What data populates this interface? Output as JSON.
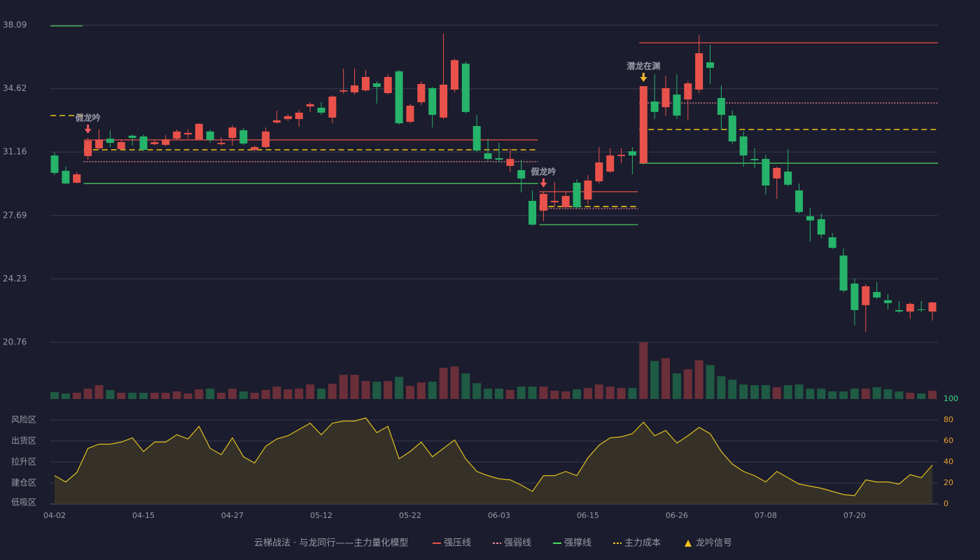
{
  "chart_data": {
    "type": "candlestick",
    "categories": [
      "04-02",
      null,
      null,
      null,
      null,
      null,
      null,
      null,
      "04-15",
      null,
      null,
      null,
      null,
      null,
      null,
      null,
      "04-27",
      null,
      null,
      null,
      null,
      null,
      null,
      null,
      "05-12",
      null,
      null,
      null,
      null,
      null,
      null,
      null,
      "05-22",
      null,
      null,
      null,
      null,
      null,
      null,
      null,
      "06-03",
      null,
      null,
      null,
      null,
      null,
      null,
      null,
      "06-15",
      null,
      null,
      null,
      null,
      null,
      null,
      null,
      "06-26",
      null,
      null,
      null,
      null,
      null,
      null,
      null,
      "07-08",
      null,
      null,
      null,
      null,
      null,
      null,
      null,
      "07-20",
      null,
      null,
      null,
      null,
      null,
      null,
      null
    ],
    "open": [
      30.97,
      30.13,
      29.48,
      30.94,
      31.36,
      31.89,
      31.32,
      32.05,
      32.01,
      31.59,
      31.55,
      31.89,
      32.12,
      31.85,
      32.28,
      31.59,
      31.93,
      32.35,
      31.28,
      31.43,
      32.77,
      32.96,
      32.96,
      33.65,
      33.58,
      33.04,
      34.46,
      34.42,
      34.53,
      34.91,
      34.38,
      35.57,
      32.81,
      33.88,
      34.65,
      33.04,
      34.57,
      35.99,
      32.58,
      31.09,
      30.82,
      30.4,
      30.17,
      28.49,
      27.95,
      28.41,
      28.14,
      29.48,
      28.56,
      29.56,
      30.09,
      30.94,
      31.2,
      30.55,
      33.92,
      33.61,
      34.3,
      34.03,
      34.57,
      36.06,
      34.11,
      33.15,
      32.01,
      30.78,
      30.78,
      29.71,
      30.09,
      29.06,
      27.65,
      27.49,
      26.5,
      25.5,
      23.97,
      22.79,
      23.51,
      23.06,
      22.52,
      22.44,
      22.56,
      22.44
    ],
    "high": [
      31.13,
      30.36,
      30.05,
      31.93,
      32.39,
      32.35,
      31.85,
      32.12,
      32.12,
      31.82,
      32.08,
      32.39,
      32.39,
      32.73,
      32.39,
      31.97,
      32.62,
      32.47,
      31.51,
      32.5,
      33.42,
      33.23,
      33.46,
      33.88,
      33.88,
      34.26,
      35.72,
      35.72,
      35.64,
      35.03,
      35.41,
      35.64,
      33.81,
      35.03,
      34.72,
      37.63,
      36.25,
      36.1,
      33.19,
      31.89,
      31.66,
      31.36,
      30.74,
      29.06,
      28.99,
      29.52,
      28.96,
      29.67,
      29.9,
      31.43,
      31.36,
      31.36,
      31.43,
      34.76,
      35.41,
      35.34,
      35.41,
      35.03,
      37.55,
      37.02,
      34.8,
      33.42,
      32.28,
      31.36,
      31.01,
      30.36,
      31.32,
      29.44,
      28.11,
      27.8,
      26.73,
      25.89,
      24.24,
      23.94,
      24.05,
      23.4,
      23.02,
      22.94,
      23.02,
      22.98
    ],
    "low": [
      29.9,
      29.4,
      29.44,
      30.74,
      31.28,
      31.43,
      31.24,
      31.51,
      31.2,
      31.51,
      31.47,
      31.82,
      31.89,
      31.82,
      31.66,
      31.51,
      31.51,
      31.55,
      31.2,
      31.36,
      32.7,
      32.85,
      32.54,
      33.35,
      33.19,
      32.73,
      34.34,
      34.3,
      34.46,
      33.81,
      34.3,
      32.66,
      32.73,
      33.73,
      32.5,
      32.96,
      34.42,
      33.27,
      31.17,
      30.67,
      30.59,
      30.05,
      28.95,
      27.11,
      27.38,
      28.14,
      28.07,
      28.07,
      28.3,
      29.44,
      30.02,
      30.55,
      29.94,
      30.48,
      32.96,
      33.12,
      32.96,
      32.89,
      34.38,
      34.88,
      32.39,
      31.62,
      30.36,
      30.29,
      28.83,
      28.6,
      29.29,
      27.8,
      26.27,
      26.46,
      25.85,
      23.48,
      21.68,
      21.3,
      23.13,
      22.56,
      22.37,
      22.06,
      22.4,
      21.95
    ],
    "close": [
      30.02,
      29.44,
      29.94,
      31.78,
      31.82,
      31.66,
      31.7,
      31.93,
      31.28,
      31.7,
      31.85,
      32.28,
      32.2,
      32.7,
      31.82,
      31.66,
      32.5,
      31.62,
      31.43,
      32.28,
      32.89,
      33.12,
      33.31,
      33.77,
      33.31,
      34.19,
      34.53,
      34.8,
      35.26,
      34.72,
      35.26,
      32.73,
      33.69,
      34.88,
      33.19,
      34.84,
      36.18,
      33.35,
      31.24,
      30.78,
      30.74,
      30.78,
      29.71,
      27.19,
      28.87,
      28.49,
      28.76,
      28.14,
      29.6,
      30.59,
      30.97,
      31.01,
      30.97,
      34.76,
      33.35,
      34.65,
      33.15,
      34.91,
      36.56,
      35.76,
      33.19,
      31.74,
      30.97,
      30.71,
      29.33,
      30.29,
      29.37,
      27.88,
      27.42,
      26.65,
      25.92,
      23.59,
      22.52,
      23.82,
      23.21,
      22.9,
      22.44,
      22.86,
      22.52,
      22.94
    ],
    "volume": [
      10,
      8,
      9,
      15,
      20,
      13,
      9,
      9,
      9,
      9,
      9,
      11,
      8,
      14,
      15,
      9,
      15,
      11,
      9,
      13,
      18,
      14,
      15,
      21,
      15,
      22,
      35,
      35,
      26,
      25,
      26,
      32,
      19,
      24,
      25,
      45,
      47,
      37,
      23,
      15,
      15,
      13,
      18,
      18,
      18,
      12,
      11,
      14,
      16,
      21,
      18,
      16,
      16,
      82,
      55,
      59,
      37,
      43,
      56,
      49,
      33,
      28,
      21,
      20,
      20,
      17,
      20,
      21,
      15,
      15,
      11,
      11,
      15,
      15,
      17,
      14,
      11,
      9,
      8,
      12
    ],
    "up_color": "#e8524a",
    "down_color": "#26b36a",
    "volume_up_color": "#6b2f3a",
    "volume_down_color": "#1f5a44",
    "ylim": [
      20.76,
      38.09
    ],
    "yticks": [
      20.76,
      24.23,
      27.69,
      31.16,
      34.62,
      38.09
    ],
    "grid": true,
    "levels": [
      {
        "name": "强压线",
        "color": "#e8524a",
        "style": "solid",
        "segments": [
          {
            "start": 3,
            "end": 43,
            "value": 31.82
          },
          {
            "start": 44,
            "end": 52,
            "value": 28.99
          },
          {
            "start": 53,
            "end": 79,
            "value": 37.13
          }
        ]
      },
      {
        "name": "强弱线",
        "color": "#f08aa0",
        "style": "dotted",
        "segments": [
          {
            "start": 3,
            "end": 43,
            "value": 30.63
          },
          {
            "start": 44,
            "end": 52,
            "value": 28.07
          },
          {
            "start": 53,
            "end": 79,
            "value": 33.84
          }
        ]
      },
      {
        "name": "强撑线",
        "color": "#4cd964",
        "style": "solid",
        "segments": [
          {
            "start": 0,
            "end": 2,
            "value": 38.05
          },
          {
            "start": 3,
            "end": 43,
            "value": 29.44
          },
          {
            "start": 44,
            "end": 52,
            "value": 27.19
          },
          {
            "start": 53,
            "end": 79,
            "value": 30.55
          }
        ]
      },
      {
        "name": "主力成本",
        "color": "#f0c419",
        "style": "dashed",
        "segments": [
          {
            "start": 0,
            "end": 2,
            "value": 33.15
          },
          {
            "start": 3,
            "end": 43,
            "value": 31.28
          },
          {
            "start": 44,
            "end": 52,
            "value": 28.18
          },
          {
            "start": 53,
            "end": 79,
            "value": 32.39
          }
        ]
      }
    ],
    "signals": [
      {
        "index": 3,
        "label": "假龙吟",
        "color": "#f05a5a"
      },
      {
        "index": 44,
        "label": "假龙吟",
        "color": "#f05a5a"
      },
      {
        "index": 53,
        "label": "潜龙在渊",
        "color": "#f0b830"
      }
    ],
    "signal_legend": "龙吟信号",
    "signal_legend_color": "#f0c419",
    "legend_title": "云梯战法 · 与龙同行——主力量化模型",
    "oscillator": {
      "values": [
        27,
        21,
        30,
        53,
        57,
        57,
        59,
        63,
        50,
        59,
        59,
        66,
        62,
        74,
        53,
        47,
        63,
        45,
        39,
        55,
        62,
        65,
        71,
        77,
        66,
        77,
        79,
        79,
        82,
        68,
        74,
        43,
        50,
        59,
        45,
        53,
        61,
        43,
        31,
        27,
        24,
        23,
        18,
        12,
        27,
        27,
        31,
        27,
        44,
        56,
        63,
        64,
        67,
        78,
        65,
        70,
        58,
        65,
        73,
        67,
        50,
        38,
        31,
        27,
        21,
        31,
        25,
        19,
        17,
        15,
        12,
        9,
        8,
        23,
        21,
        21,
        19,
        28,
        25,
        37
      ],
      "color": "#e0c020",
      "ylim": [
        0,
        100
      ],
      "yticks": [
        0,
        20,
        40,
        60,
        80,
        100
      ],
      "zones": [
        {
          "label": "风险区",
          "value": 80,
          "color": "#f0a040"
        },
        {
          "label": "出货区",
          "value": 60,
          "color": "#e050e8"
        },
        {
          "label": "拉升区",
          "value": 40,
          "color": "#4aa0ff"
        },
        {
          "label": "建仓区",
          "value": 20,
          "color": "#ff5a5a"
        },
        {
          "label": "低吸区",
          "value": 0,
          "color": "#ff4a4a"
        }
      ]
    }
  }
}
